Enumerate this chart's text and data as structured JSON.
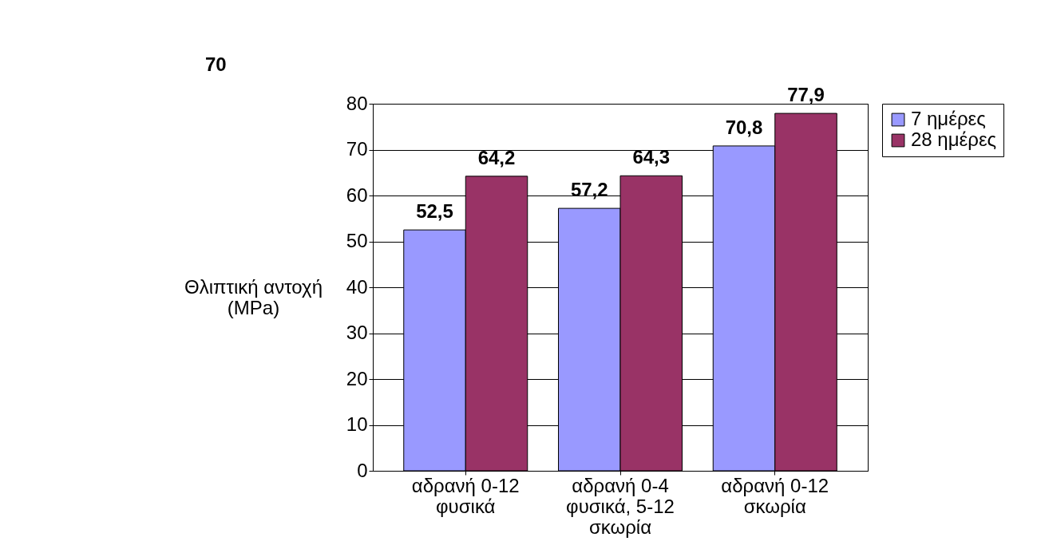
{
  "chart_data": {
    "type": "bar",
    "categories": [
      "αδρανή 0-12 φυσικά",
      "αδρανή 0-4 φυσικά, 5-12 σκωρία",
      "αδρανή 0-12 σκωρία"
    ],
    "series": [
      {
        "name": "7 ημέρες",
        "color": "#9999ff",
        "values": [
          52.5,
          57.2,
          70.8
        ],
        "value_labels": [
          "52,5",
          "57,2",
          "70,8"
        ]
      },
      {
        "name": "28 ημέρες",
        "color": "#993366",
        "values": [
          64.2,
          64.3,
          77.9
        ],
        "value_labels": [
          "64,2",
          "64,3",
          "77,9"
        ]
      }
    ],
    "ylabel": "Θλιπτική αντοχή (MPa)",
    "ylim": [
      0,
      80
    ],
    "yticks": [
      0,
      10,
      20,
      30,
      40,
      50,
      60,
      70,
      80
    ],
    "grid": "y",
    "legend": "right",
    "annotations": [
      "70"
    ]
  }
}
